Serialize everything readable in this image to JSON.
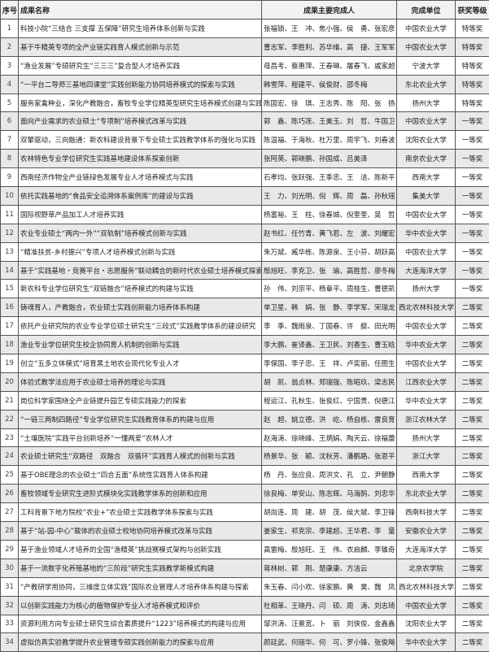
{
  "header": {
    "seq": "序号",
    "title": "成果名称",
    "people": "成果主要完成人",
    "unit": "完成单位",
    "grade": "获奖等级"
  },
  "rows": [
    {
      "seq": "1",
      "title": "科技小院“三结合 三支撑 五保障”研究生培养体系创新与实践",
      "people": "张福锁、王　冲、焦小强、侯　勇、张宏彦",
      "unit": "中国农业大学",
      "grade": "特等奖"
    },
    {
      "seq": "2",
      "title": "基于牛精英专项的全产业链实践育人模式创新与示范",
      "people": "曹志军、李胜利、苏华维、高　捷、王军军",
      "unit": "中国农业大学",
      "grade": "特等奖"
    },
    {
      "seq": "3",
      "title": "“渔业发展”专硕研究生“三三三”复合型人才培养实践",
      "people": "母昌考、蔡惠萍、王春琳、屠春飞、戚家超",
      "unit": "宁波大学",
      "grade": "特等奖"
    },
    {
      "seq": "4",
      "title": "“一平台二导师三基地四课堂”实践创新能力协同培养模式的探索与实践",
      "people": "韩雪萍、程建平、侯俊财、邵冬梅",
      "unit": "东北农业大学",
      "grade": "特等奖"
    },
    {
      "seq": "5",
      "title": "服务家禽种业，深化产教融合，畜牧专业学位精英型研究生培养模式创建与实践",
      "people": "陈国宏、徐　琪、王志秀、陈　阳、张　扬",
      "unit": "扬州大学",
      "grade": "特等奖"
    },
    {
      "seq": "6",
      "title": "面向产业需求的农业硕士“专项制”培养模式改革与实践",
      "people": "郭　鑫、陈巧莲、王美玉、刘　哲、牛国卫",
      "unit": "中国农业大学",
      "grade": "一等奖"
    },
    {
      "seq": "7",
      "title": "双擎驱动，三向融通：新农科建设背景下专业硕士实践教学体系的强化与实践",
      "people": "陈温福、于海秋、杜万里、周宇飞、刘春波",
      "unit": "沈阳农业大学",
      "grade": "一等奖"
    },
    {
      "seq": "8",
      "title": "农林特色专业学位研究生实践基地建设体系探索创新",
      "people": "张阿英、郭晓鹏、孙国成、吕美泽",
      "unit": "南京农业大学",
      "grade": "一等奖"
    },
    {
      "seq": "9",
      "title": "西南经济作物全产业链绿色发展专业人才培养模式与实践",
      "people": "石孝均、张跃强、王季忠、王　洁、陈新平",
      "unit": "西南大学",
      "grade": "一等奖"
    },
    {
      "seq": "10",
      "title": "依托实践基地的“食品安全追溯体系案例库”的建设与实践",
      "people": "王　力、刘光明、倪　辉、周　磊、孙秋瑶",
      "unit": "集美大学",
      "grade": "一等奖"
    },
    {
      "seq": "11",
      "title": "国际视野草产品加工人才培养实践",
      "people": "杨富裕、王　柱、徐春城、倪奎奎、吴　哲",
      "unit": "中国农业大学",
      "grade": "一等奖"
    },
    {
      "seq": "12",
      "title": "农业专业硕士“两内一外”“双轨制”培养模式创新与实践",
      "people": "赵书红、任竹青、黄飞若、左　波、刘耀宏",
      "unit": "华中农业大学",
      "grade": "一等奖"
    },
    {
      "seq": "13",
      "title": "“精准扶贫-乡村振兴”专项人才培养模式创新与实践",
      "people": "朱万斌、臧华栋、陈源泉、王小芬、胡跃高",
      "unit": "中国农业大学",
      "grade": "一等奖"
    },
    {
      "seq": "14",
      "title": "基于“实践基地・竞赛平台・志愿服务”联动耦合的新时代农业硕士培养模式探索与实践",
      "people": "殷旭旺、李克卫、张　瑜、高胜哲、廖冬梅",
      "unit": "大连海洋大学",
      "grade": "一等奖"
    },
    {
      "seq": "15",
      "title": "新农科专业学位研究生“双链融合”培养模式的构建与实践",
      "people": "孙　伟、刘宗平、杨章平、周桂生、曹德凯",
      "unit": "扬州大学",
      "grade": "一等奖"
    },
    {
      "seq": "16",
      "title": "铸魂育人，产教融合，农业硕士实践创新能力培养体系构建",
      "people": "单卫星、韩　娟、张　静、李学军、宋瑞龙",
      "unit": "西北农林科技大学",
      "grade": "二等奖"
    },
    {
      "seq": "17",
      "title": "依托产业研究院的农业专业学位硕士研究生“三段式”实践教学体系的建设研究",
      "people": "李　季、魏雨泉、丁国春、许　艇、田光明",
      "unit": "中国农业大学",
      "grade": "二等奖"
    },
    {
      "seq": "18",
      "title": "渔业专业学位研究生校企协同育人机制的创新与实践",
      "people": "李大鹏、崔译鑫、王卫民、刘香生、曹玉晗",
      "unit": "华中农业大学",
      "grade": "二等奖"
    },
    {
      "seq": "19",
      "title": "创立“五多立体模式”培育黑土地农业现代化专业人才",
      "people": "李保国、李子忠、王　祥、卢奕丽、任图生",
      "unit": "中国农业大学",
      "grade": "二等奖"
    },
    {
      "seq": "20",
      "title": "体验式教学法应用于农业硕士培养的理论与实践",
      "people": "胡　凯、翁贞林、郑瑞强、陈昭玖、梁志民",
      "unit": "江西农业大学",
      "grade": "二等奖"
    },
    {
      "seq": "21",
      "title": "岗位科学家围绕全产业链提升园艺专硕实践能力的探索",
      "people": "程运江、孔秋生、张俊红、宁国贵、倪德江",
      "unit": "华中农业大学",
      "grade": "二等奖"
    },
    {
      "seq": "22",
      "title": "“一链三两制四路径”专业学位研究生实践教育体系的构建与应用",
      "people": "赵　超、姚立德、洪　屹、杨自栋、雷良育",
      "unit": "浙江农林大学",
      "grade": "二等奖"
    },
    {
      "seq": "23",
      "title": "“土壤医院”实践平台创新培养“一懂两爱”农林人才",
      "people": "赵海涛、徐晓峰、王炳娟、陶天云、徐福蕾",
      "unit": "扬州大学",
      "grade": "二等奖"
    },
    {
      "seq": "24",
      "title": "农业硕士研究生“双路径　双融合　双循环”实践育人模式的创新与实践",
      "people": "杨景华、张　颖、沈秋芳、潘鹏路、张恩平",
      "unit": "浙江大学",
      "grade": "二等奖"
    },
    {
      "seq": "25",
      "title": "基于OBE理念的农业硕士“四合五面”系统性实践育人体系构建",
      "people": "杨　丹、张应良、周洪文、孔　立、尹朝静",
      "unit": "西南大学",
      "grade": "二等奖"
    },
    {
      "seq": "26",
      "title": "畜牧领域专业研究生进阶式模块化实践教学体系的创新和应用",
      "people": "徐良梅、单安山、陈志辉、马海鹄、刘忠华",
      "unit": "东北农业大学",
      "grade": "二等奖"
    },
    {
      "seq": "27",
      "title": "工科背景下地方院校“农业+”农业硕士实践教学体系探索与实践",
      "people": "胡尚连、周　建、胡　茂、侯大斌、李卫锋",
      "unit": "西南科技大学",
      "grade": "二等奖"
    },
    {
      "seq": "28",
      "title": "基于“站-园-中心”载体的农业硕士校地协同培养模式改革与实践",
      "people": "姜家生、祁克宗、李建超、王华君、李　量",
      "unit": "安徽农业大学",
      "grade": "二等奖"
    },
    {
      "seq": "29",
      "title": "基于渔业领域人才培养的全国“渔精英”挑战赛模式架构与创新实践",
      "people": "高雷梅、殷旭旺、王　伟、衣启麟、李锥奇",
      "unit": "大连海洋大学",
      "grade": "二等奖"
    },
    {
      "seq": "30",
      "title": "基于一流数字化养殖基地的“三阶段”研究生实践教学新模式构建",
      "people": "蒋林树、郭　刚、楚康康、方洁云",
      "unit": "北京农学院",
      "grade": "二等奖"
    },
    {
      "seq": "31",
      "title": "“产教研学用协同，三维度立体实践”国际农业管理人才培养体系构建与探索",
      "people": "朱玉春、闫小欢、徐家鹏、黄　昊、魏　凤",
      "unit": "西北农林科技大学",
      "grade": "二等奖"
    },
    {
      "seq": "32",
      "title": "以创新实践能力为核心的植物保护专业人才培养模式和评价",
      "people": "杜相革、王晓丹、闫　硕、周　涛、刘志琦",
      "unit": "中国农业大学",
      "grade": "二等奖"
    },
    {
      "seq": "33",
      "title": "资源利用方向专业硕士研究生综合素质提升“1223”培养模式的构建与应用",
      "people": "邹洪涛、汪景宽、卜　丽　刘侠俊、金鑫鑫",
      "unit": "沈阳农业大学",
      "grade": "二等奖"
    },
    {
      "seq": "34",
      "title": "虚拟仿真实验教学提升农业管理专硕实践创新能力的探索与应用",
      "people": "颜廷武、何丽华、何　可、罗小锋、张俊飚",
      "unit": "华中农业大学",
      "grade": "二等奖"
    }
  ]
}
